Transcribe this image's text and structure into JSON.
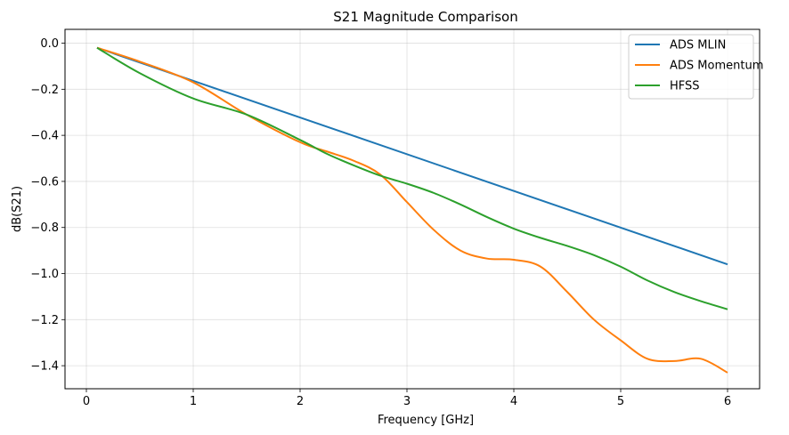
{
  "chart_data": {
    "type": "line",
    "title": "S21 Magnitude Comparison",
    "xlabel": "Frequency [GHz]",
    "ylabel": "dB(S21)",
    "xlim": [
      -0.2,
      6.3
    ],
    "ylim": [
      -1.5,
      0.06
    ],
    "xticks": [
      0,
      1,
      2,
      3,
      4,
      5,
      6
    ],
    "xtick_labels": [
      "0",
      "1",
      "2",
      "3",
      "4",
      "5",
      "6"
    ],
    "yticks": [
      0.0,
      -0.2,
      -0.4,
      -0.6,
      -0.8,
      -1.0,
      -1.2,
      -1.4
    ],
    "ytick_labels": [
      "0.0",
      "−0.2",
      "−0.4",
      "−0.6",
      "−0.8",
      "−1.0",
      "−1.2",
      "−1.4"
    ],
    "grid": true,
    "legend_position": "top-right",
    "series": [
      {
        "name": "ADS MLIN",
        "color": "#1f77b4",
        "x": [
          0.1,
          6.0
        ],
        "y": [
          -0.02,
          -0.96
        ]
      },
      {
        "name": "ADS Momentum",
        "color": "#ff7f0e",
        "x": [
          0.1,
          0.5,
          1.0,
          1.5,
          2.0,
          2.25,
          2.5,
          2.75,
          3.0,
          3.25,
          3.5,
          3.75,
          4.0,
          4.25,
          4.5,
          4.75,
          5.0,
          5.25,
          5.5,
          5.75,
          6.0
        ],
        "y": [
          -0.02,
          -0.08,
          -0.17,
          -0.31,
          -0.43,
          -0.47,
          -0.51,
          -0.57,
          -0.69,
          -0.81,
          -0.9,
          -0.935,
          -0.94,
          -0.97,
          -1.08,
          -1.2,
          -1.29,
          -1.37,
          -1.38,
          -1.37,
          -1.43
        ]
      },
      {
        "name": "HFSS",
        "color": "#2ca02c",
        "x": [
          0.1,
          0.5,
          1.0,
          1.5,
          2.0,
          2.25,
          2.5,
          2.75,
          3.0,
          3.25,
          3.5,
          3.75,
          4.0,
          4.25,
          4.5,
          4.75,
          5.0,
          5.25,
          5.5,
          5.75,
          6.0
        ],
        "y": [
          -0.02,
          -0.13,
          -0.24,
          -0.31,
          -0.42,
          -0.48,
          -0.53,
          -0.575,
          -0.61,
          -0.65,
          -0.7,
          -0.755,
          -0.805,
          -0.845,
          -0.88,
          -0.92,
          -0.97,
          -1.03,
          -1.08,
          -1.12,
          -1.155
        ]
      }
    ]
  }
}
